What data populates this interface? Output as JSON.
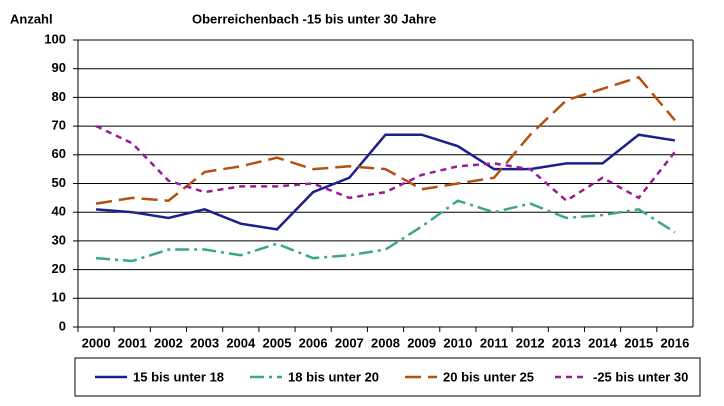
{
  "chart_data": {
    "type": "line",
    "title": "Oberreichenbach -15 bis unter 30 Jahre",
    "y_label": "Anzahl",
    "categories": [
      "2000",
      "2001",
      "2002",
      "2003",
      "2004",
      "2005",
      "2006",
      "2007",
      "2008",
      "2009",
      "2010",
      "2011",
      "2012",
      "2013",
      "2014",
      "2015",
      "2016"
    ],
    "series": [
      {
        "name": "15 bis unter 18",
        "color": "#1f1f8c",
        "dash": "",
        "values": [
          41,
          40,
          38,
          41,
          36,
          34,
          47,
          52,
          67,
          67,
          63,
          55,
          55,
          57,
          57,
          67,
          65
        ]
      },
      {
        "name": "18 bis unter 20",
        "color": "#3aaa7a",
        "dash": "14 5 3 5",
        "values": [
          24,
          23,
          27,
          27,
          25,
          29,
          24,
          25,
          27,
          35,
          44,
          40,
          43,
          38,
          39,
          41,
          33
        ]
      },
      {
        "name": "20 bis unter 25",
        "color": "#b5500f",
        "dash": "16 7",
        "values": [
          43,
          45,
          44,
          54,
          56,
          59,
          55,
          56,
          55,
          48,
          50,
          52,
          67,
          79,
          83,
          87,
          72
        ]
      },
      {
        "name": "-25 bis unter 30",
        "color": "#9a1a9a",
        "dash": "6 5",
        "values": [
          70,
          64,
          51,
          47,
          49,
          49,
          50,
          45,
          47,
          53,
          56,
          57,
          55,
          44,
          52,
          45,
          61
        ]
      }
    ],
    "ylim": [
      0,
      100
    ],
    "yticks": [
      0,
      10,
      20,
      30,
      40,
      50,
      60,
      70,
      80,
      90,
      100
    ],
    "grid": true
  }
}
